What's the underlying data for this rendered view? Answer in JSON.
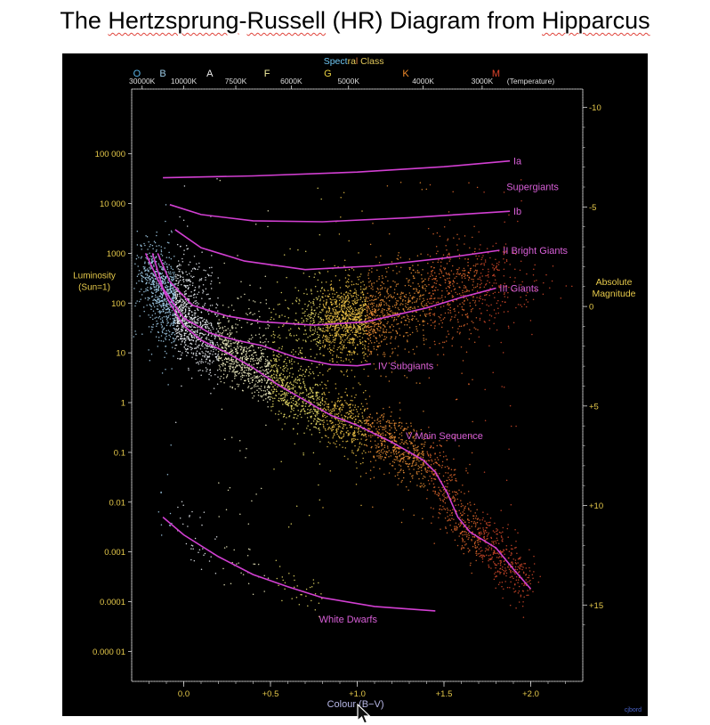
{
  "page_title": {
    "pre": "The ",
    "word1": "Hertzsprung",
    "mid1": "-",
    "word2": "Russell",
    "mid2": " (HR) Diagram from ",
    "word3": "Hipparcus"
  },
  "chart_data": {
    "type": "scatter",
    "title": "",
    "xlabel": "Colour (B−V)",
    "xlim": [
      -0.3,
      2.3
    ],
    "x_ticks": [
      {
        "v": 0.0,
        "label": "0.0"
      },
      {
        "v": 0.5,
        "label": "+0.5"
      },
      {
        "v": 1.0,
        "label": "+1.0"
      },
      {
        "v": 1.5,
        "label": "+1.5"
      },
      {
        "v": 2.0,
        "label": "+2.0"
      }
    ],
    "ylabel_left": "Luminosity (Sun=1)",
    "ylabel_left_lines": [
      "Luminosity",
      "(Sun=1)"
    ],
    "y_scale": "log",
    "ylim": [
      2.5e-06,
      2000000
    ],
    "y_ticks": [
      {
        "v": 100000,
        "label": "100 000"
      },
      {
        "v": 10000,
        "label": "10 000"
      },
      {
        "v": 1000,
        "label": "1000"
      },
      {
        "v": 100,
        "label": "100"
      },
      {
        "v": 10,
        "label": "10"
      },
      {
        "v": 1,
        "label": "1"
      },
      {
        "v": 0.1,
        "label": "0.1"
      },
      {
        "v": 0.01,
        "label": "0.01"
      },
      {
        "v": 0.001,
        "label": "0.001"
      },
      {
        "v": 0.0001,
        "label": "0.0001"
      },
      {
        "v": 1e-05,
        "label": "0.000 01"
      }
    ],
    "ylabel_right": "Absolute Magnitude",
    "ylabel_right_lines": [
      "Absolute",
      "Magnitude"
    ],
    "right_ticks": [
      {
        "mag": -10,
        "label": "-10"
      },
      {
        "mag": -5,
        "label": "-5"
      },
      {
        "mag": 0,
        "label": "0"
      },
      {
        "mag": 5,
        "label": "+5"
      },
      {
        "mag": 10,
        "label": "+10"
      },
      {
        "mag": 15,
        "label": "+15"
      }
    ],
    "top_axis": {
      "title_parts": [
        {
          "text": "Spect",
          "color": "#6ec6f2"
        },
        {
          "text": "ra",
          "color": "#e3c95a"
        },
        {
          "text": "l",
          "color": "#e07b3a"
        },
        {
          "text": " Class",
          "color": "#e3c95a"
        }
      ],
      "classes": [
        {
          "bv": -0.27,
          "label": "O",
          "color": "#5ab4e6"
        },
        {
          "bv": -0.12,
          "label": "B",
          "color": "#9ccbe6"
        },
        {
          "bv": 0.15,
          "label": "A",
          "color": "#f2f2f2"
        },
        {
          "bv": 0.48,
          "label": "F",
          "color": "#f5f0a0"
        },
        {
          "bv": 0.83,
          "label": "G",
          "color": "#e8d040"
        },
        {
          "bv": 1.28,
          "label": "K",
          "color": "#f08a2a"
        },
        {
          "bv": 1.8,
          "label": "M",
          "color": "#e0452c"
        }
      ],
      "temperatures": [
        {
          "bv": -0.24,
          "label": "30000K"
        },
        {
          "bv": 0.0,
          "label": "10000K"
        },
        {
          "bv": 0.3,
          "label": "7500K"
        },
        {
          "bv": 0.62,
          "label": "6000K"
        },
        {
          "bv": 0.95,
          "label": "5000K"
        },
        {
          "bv": 1.38,
          "label": "4000K"
        },
        {
          "bv": 1.72,
          "label": "3000K"
        },
        {
          "bv": 2.0,
          "label": "(Temperature)"
        }
      ]
    },
    "luminosity_classes": [
      {
        "name": "Ia",
        "color": "#d23fd2",
        "points": [
          [
            -0.12,
            33000
          ],
          [
            0.4,
            36000
          ],
          [
            1.0,
            43000
          ],
          [
            1.5,
            55000
          ],
          [
            1.88,
            72000
          ]
        ]
      },
      {
        "name": "Ib",
        "color": "#d23fd2",
        "points": [
          [
            -0.08,
            9500
          ],
          [
            0.1,
            6000
          ],
          [
            0.4,
            4500
          ],
          [
            0.8,
            4300
          ],
          [
            1.3,
            5200
          ],
          [
            1.88,
            7000
          ]
        ]
      },
      {
        "name": "II Bright Giants",
        "color": "#d23fd2",
        "points": [
          [
            -0.05,
            3000
          ],
          [
            0.1,
            1300
          ],
          [
            0.35,
            700
          ],
          [
            0.7,
            470
          ],
          [
            1.1,
            560
          ],
          [
            1.5,
            800
          ],
          [
            1.82,
            1150
          ]
        ]
      },
      {
        "name": "III Giants",
        "color": "#d23fd2",
        "points": [
          [
            -0.15,
            1000
          ],
          [
            -0.08,
            270
          ],
          [
            0.05,
            90
          ],
          [
            0.25,
            55
          ],
          [
            0.45,
            42
          ],
          [
            0.75,
            36
          ],
          [
            1.05,
            42
          ],
          [
            1.4,
            80
          ],
          [
            1.6,
            130
          ],
          [
            1.8,
            200
          ]
        ]
      },
      {
        "name": "IV Subgiants",
        "color": "#d23fd2",
        "points": [
          [
            -0.18,
            1000
          ],
          [
            -0.12,
            200
          ],
          [
            0.0,
            50
          ],
          [
            0.15,
            25
          ],
          [
            0.3,
            18
          ],
          [
            0.45,
            14
          ],
          [
            0.65,
            8
          ],
          [
            0.85,
            5.8
          ],
          [
            1.0,
            5.5
          ],
          [
            1.08,
            6
          ]
        ]
      },
      {
        "name": "V Main Sequence",
        "color": "#d23fd2",
        "points": [
          [
            -0.22,
            1000
          ],
          [
            -0.15,
            300
          ],
          [
            -0.08,
            100
          ],
          [
            0.0,
            35
          ],
          [
            0.1,
            18
          ],
          [
            0.25,
            10
          ],
          [
            0.4,
            5
          ],
          [
            0.55,
            2.2
          ],
          [
            0.7,
            1.1
          ],
          [
            0.85,
            0.55
          ],
          [
            1.0,
            0.35
          ],
          [
            1.2,
            0.16
          ],
          [
            1.38,
            0.07
          ],
          [
            1.45,
            0.04
          ],
          [
            1.52,
            0.015
          ],
          [
            1.58,
            0.005
          ],
          [
            1.65,
            0.0025
          ],
          [
            1.8,
            0.0012
          ],
          [
            1.9,
            0.00045
          ],
          [
            2.0,
            0.00018
          ]
        ]
      },
      {
        "name": "White Dwarfs",
        "color": "#d23fd2",
        "points": [
          [
            -0.12,
            0.005
          ],
          [
            0.0,
            0.0022
          ],
          [
            0.2,
            0.0008
          ],
          [
            0.4,
            0.00035
          ],
          [
            0.6,
            0.0002
          ],
          [
            0.8,
            0.00012
          ],
          [
            1.1,
            8e-05
          ],
          [
            1.45,
            6.5e-05
          ]
        ]
      }
    ],
    "curve_labels": [
      {
        "text": "Ia",
        "bv": 1.9,
        "lum": 72000
      },
      {
        "text": "Supergiants",
        "bv": 1.86,
        "lum": 22000
      },
      {
        "text": "Ib",
        "bv": 1.9,
        "lum": 7000
      },
      {
        "text": "II Bright Giants",
        "bv": 1.84,
        "lum": 1150
      },
      {
        "text": "III    Giants",
        "bv": 1.82,
        "lum": 200
      },
      {
        "text": "IV Subgiants",
        "bv": 1.12,
        "lum": 5.5
      },
      {
        "text": "V  Main Sequence",
        "bv": 1.28,
        "lum": 0.22
      },
      {
        "text": "White Dwarfs",
        "bv": 0.78,
        "lum": 4.5e-05
      }
    ],
    "stars": {
      "description_of_density": "thousands of Hipparcos stars, densest along the main sequence and the red-giant clump",
      "clusters": [
        {
          "bv": 0.95,
          "lum": 45,
          "spread_bv": 0.12,
          "spread_logL": 0.35,
          "share": 0.11
        },
        {
          "bv": 1.3,
          "lum": 90,
          "spread_bv": 0.25,
          "spread_logL": 0.45,
          "share": 0.07
        },
        {
          "bv": 1.65,
          "lum": 300,
          "spread_bv": 0.2,
          "spread_logL": 0.4,
          "share": 0.04
        },
        {
          "bv": -0.05,
          "lum": 120,
          "spread_bv": 0.1,
          "spread_logL": 0.45,
          "share": 0.06
        },
        {
          "bv": 0.6,
          "lum": 20,
          "spread_bv": 0.3,
          "spread_logL": 0.5,
          "share": 0.05
        }
      ]
    },
    "grid": false,
    "legend": "none"
  },
  "watermark": "cjbord"
}
